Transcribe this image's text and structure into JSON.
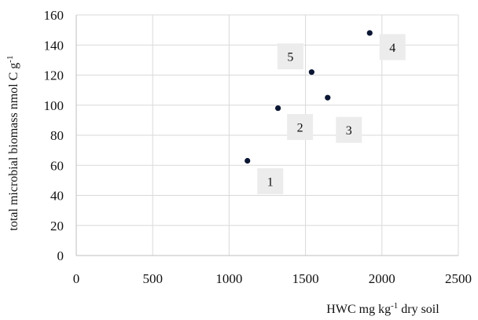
{
  "chart_data": {
    "type": "scatter",
    "title": "",
    "xlabel_parts": [
      "HWC mg kg",
      "-1",
      " dry soil"
    ],
    "ylabel_parts": [
      "total microbial biomass nmol C g",
      "-1"
    ],
    "xlim": [
      0,
      2500
    ],
    "ylim": [
      0,
      160
    ],
    "xticks": [
      0,
      500,
      1000,
      1500,
      2000,
      2500
    ],
    "yticks": [
      0,
      20,
      40,
      60,
      80,
      100,
      120,
      140,
      160
    ],
    "grid": true,
    "legend": "none",
    "marker_color": "#0b1633",
    "points": [
      {
        "x": 1120,
        "y": 63,
        "label": "1"
      },
      {
        "x": 1320,
        "y": 98,
        "label": "2"
      },
      {
        "x": 1645,
        "y": 105,
        "label": "3"
      },
      {
        "x": 1920,
        "y": 148,
        "label": "4"
      },
      {
        "x": 1540,
        "y": 122,
        "label": "5"
      }
    ]
  }
}
